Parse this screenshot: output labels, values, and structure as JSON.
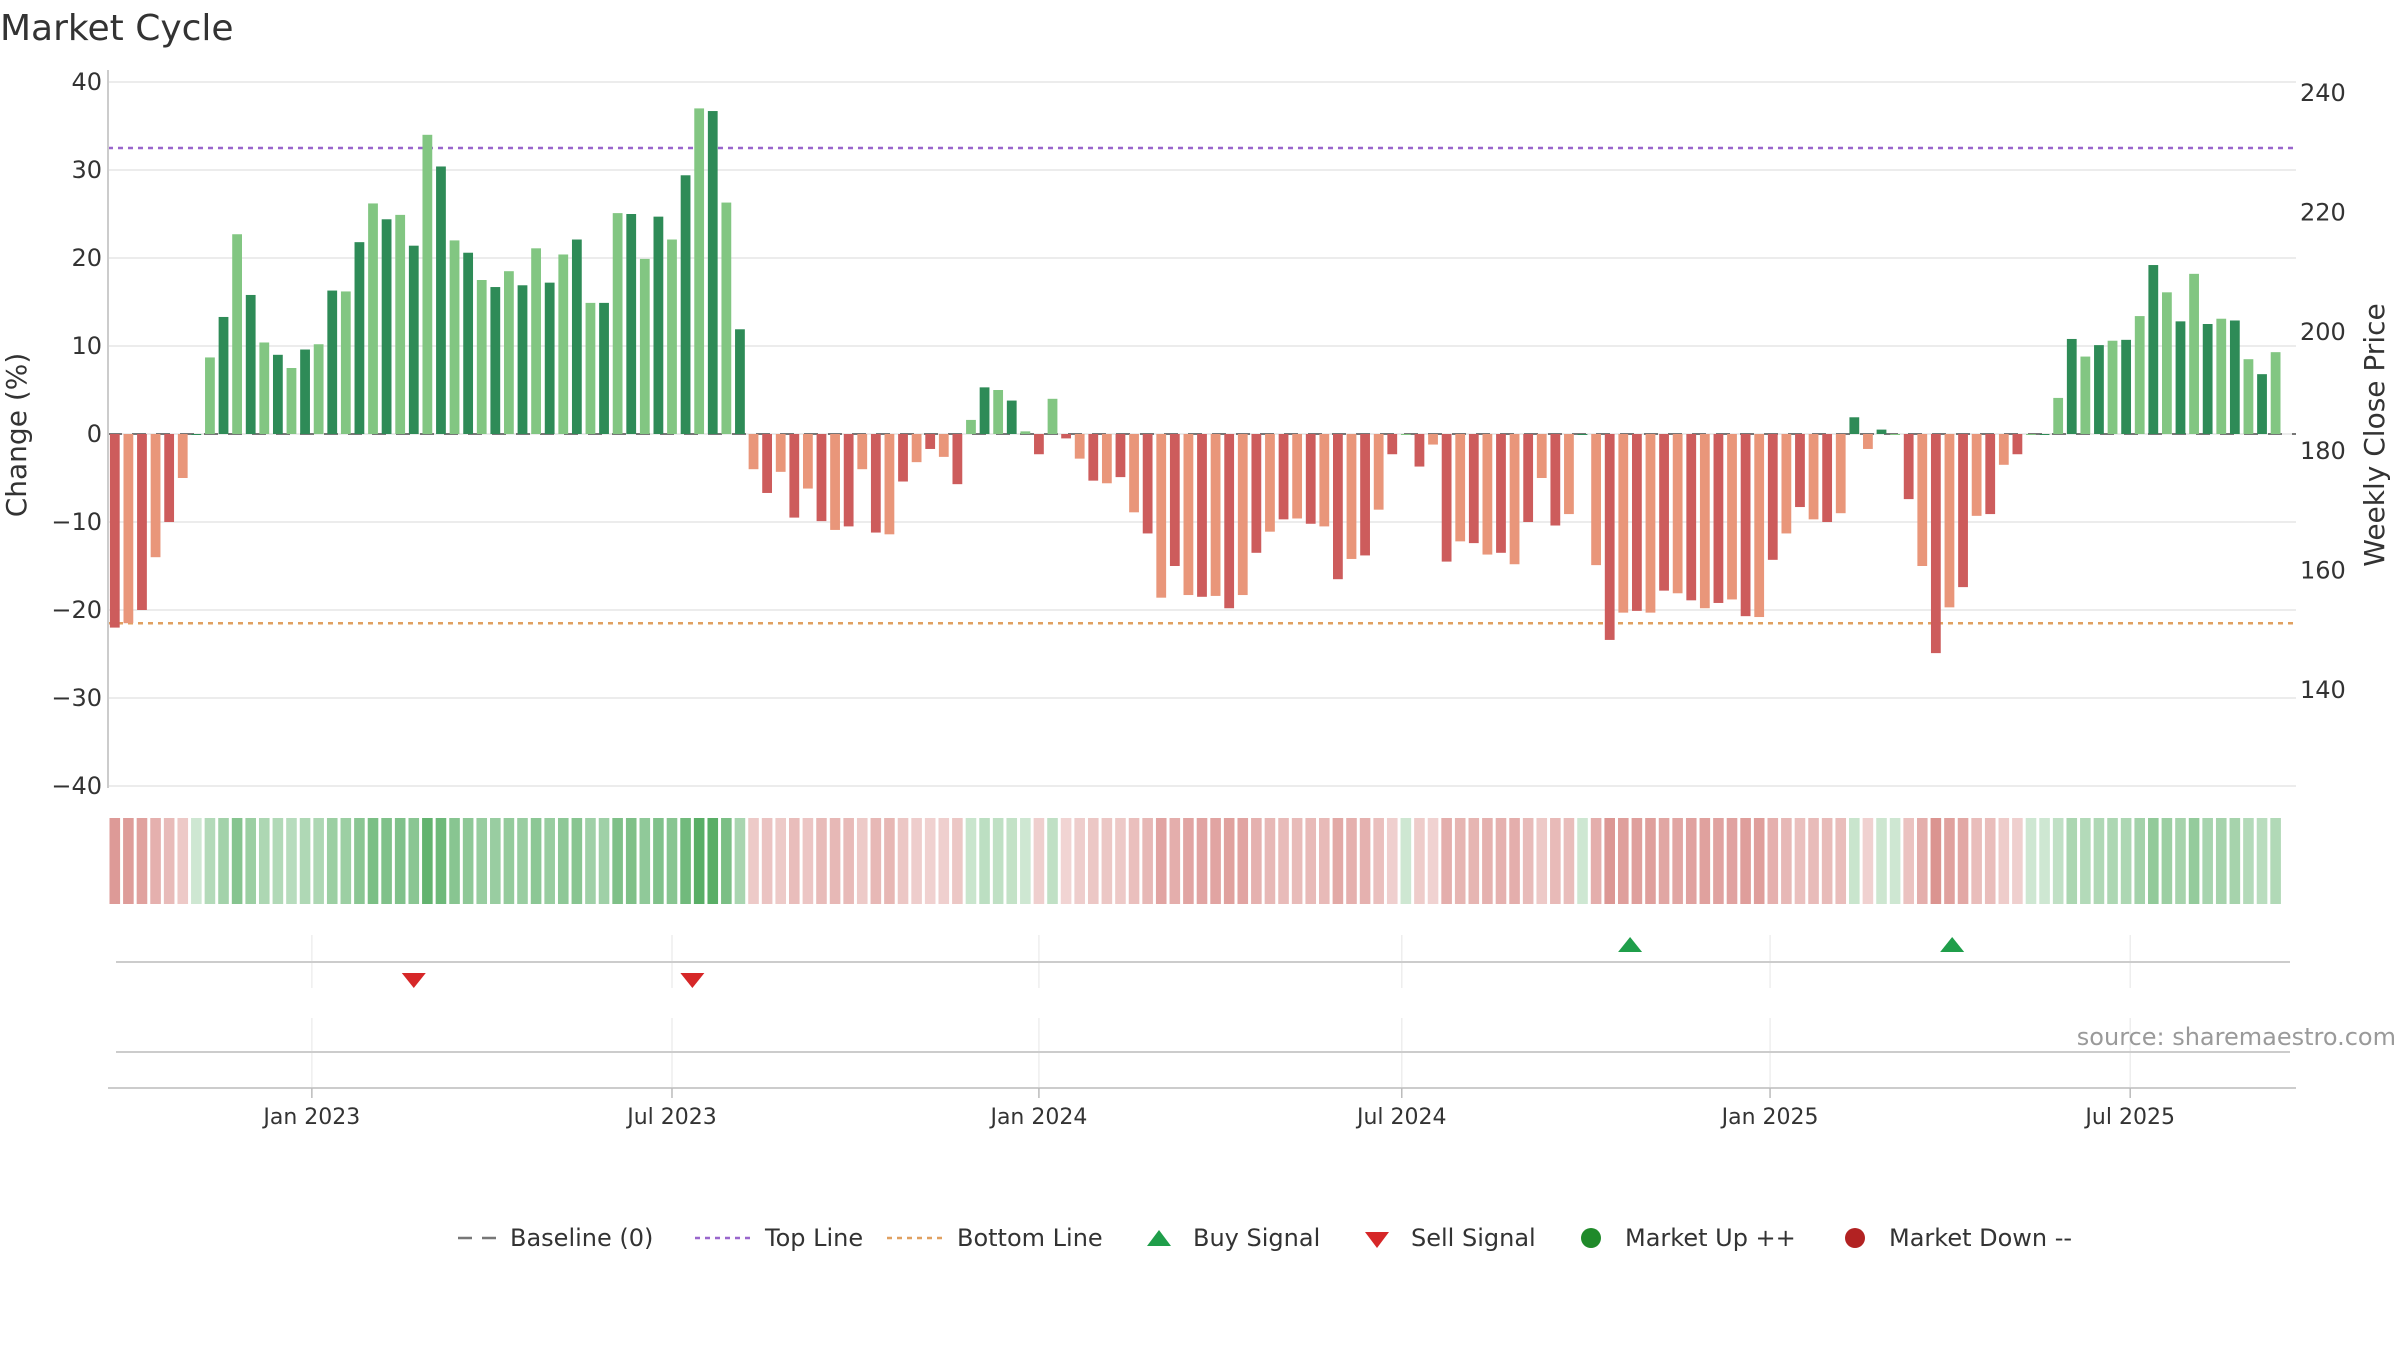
{
  "chart_data": {
    "type": "bar",
    "title": "Market Cycle",
    "ylabel_left": "Change (%)",
    "ylabel_right": "Weekly Close Price",
    "ylim_left": [
      -40,
      40
    ],
    "yticks_left": [
      "40",
      "30",
      "20",
      "10",
      "0",
      "−10",
      "−20",
      "−30",
      "−40"
    ],
    "ylim_right": [
      130,
      240
    ],
    "yticks_right": [
      "240",
      "220",
      "200",
      "180",
      "160",
      "140"
    ],
    "top_line": 32.5,
    "bottom_line": -21.5,
    "x_tick_labels": [
      "Jan 2023",
      "Jul 2023",
      "Jan 2024",
      "Jul 2024",
      "Jan 2025",
      "Jul 2025"
    ],
    "x_range_weeks": [
      0,
      161
    ],
    "x_tick_weeks": [
      15,
      41.5,
      68.5,
      95.2,
      122.3,
      148.8
    ],
    "grid": true,
    "legend_position": "bottom",
    "colors": {
      "up_strong": "#2e8b57",
      "up_light": "#82c682",
      "down_strong": "#cd5c5c",
      "down_light": "#e9967a",
      "top_line": "#9966cc",
      "bottom_line": "#e0a060",
      "buy": "#1f9e4a",
      "sell": "#d62728",
      "market_up": "#1f8a2a",
      "market_down": "#b22222"
    },
    "values": [
      -22,
      -21.5,
      -20,
      -14,
      -10,
      -5,
      0,
      8.7,
      13.3,
      22.7,
      15.8,
      10.4,
      9,
      7.5,
      9.6,
      10.2,
      16.3,
      16.2,
      21.8,
      26.2,
      24.4,
      24.9,
      21.4,
      34,
      30.4,
      22,
      20.6,
      17.5,
      16.7,
      18.5,
      16.9,
      21.1,
      17.2,
      20.4,
      22.1,
      14.9,
      14.9,
      25.1,
      25,
      19.9,
      24.7,
      22.1,
      29.4,
      37,
      36.7,
      26.3,
      11.9,
      -4,
      -6.7,
      -4.3,
      -9.5,
      -6.2,
      -9.9,
      -10.9,
      -10.5,
      -4,
      -11.2,
      -11.4,
      -5.4,
      -3.2,
      -1.7,
      -2.6,
      -5.7,
      1.6,
      5.3,
      5,
      3.8,
      0.3,
      -2.3,
      4,
      -0.5,
      -2.8,
      -5.3,
      -5.6,
      -4.9,
      -8.9,
      -11.3,
      -18.6,
      -15,
      -18.3,
      -18.5,
      -18.4,
      -19.8,
      -18.3,
      -13.5,
      -11.1,
      -9.7,
      -9.6,
      -10.2,
      -10.5,
      -16.5,
      -14.2,
      -13.8,
      -8.6,
      -2.3,
      0,
      -3.7,
      -1.2,
      -14.5,
      -12.2,
      -12.4,
      -13.7,
      -13.5,
      -14.8,
      -10,
      -5,
      -10.4,
      -9.1,
      0,
      -14.9,
      -23.4,
      -20.3,
      -20.1,
      -20.3,
      -17.8,
      -18.1,
      -18.9,
      -19.8,
      -19.2,
      -18.8,
      -20.7,
      -20.8,
      -14.3,
      -11.3,
      -8.3,
      -9.7,
      -10,
      -9,
      1.9,
      -1.7,
      0.5,
      0,
      -7.4,
      -15,
      -24.9,
      -19.7,
      -17.4,
      -9.3,
      -9.1,
      -3.5,
      -2.3,
      0,
      0,
      4.1,
      10.8,
      8.8,
      10.1,
      10.6,
      10.7,
      13.4,
      19.2,
      16.1,
      12.8,
      18.2,
      12.5,
      13.1,
      12.9,
      8.5,
      6.8,
      9.3
    ],
    "buy_signal_weeks": [
      112,
      135.7
    ],
    "sell_signal_weeks": [
      22.5,
      43
    ],
    "legend": [
      "Baseline (0)",
      "Top Line",
      "Bottom Line",
      "Buy Signal",
      "Sell Signal",
      "Market Up ++",
      "Market Down --"
    ],
    "source": "source: sharemaestro.com"
  }
}
